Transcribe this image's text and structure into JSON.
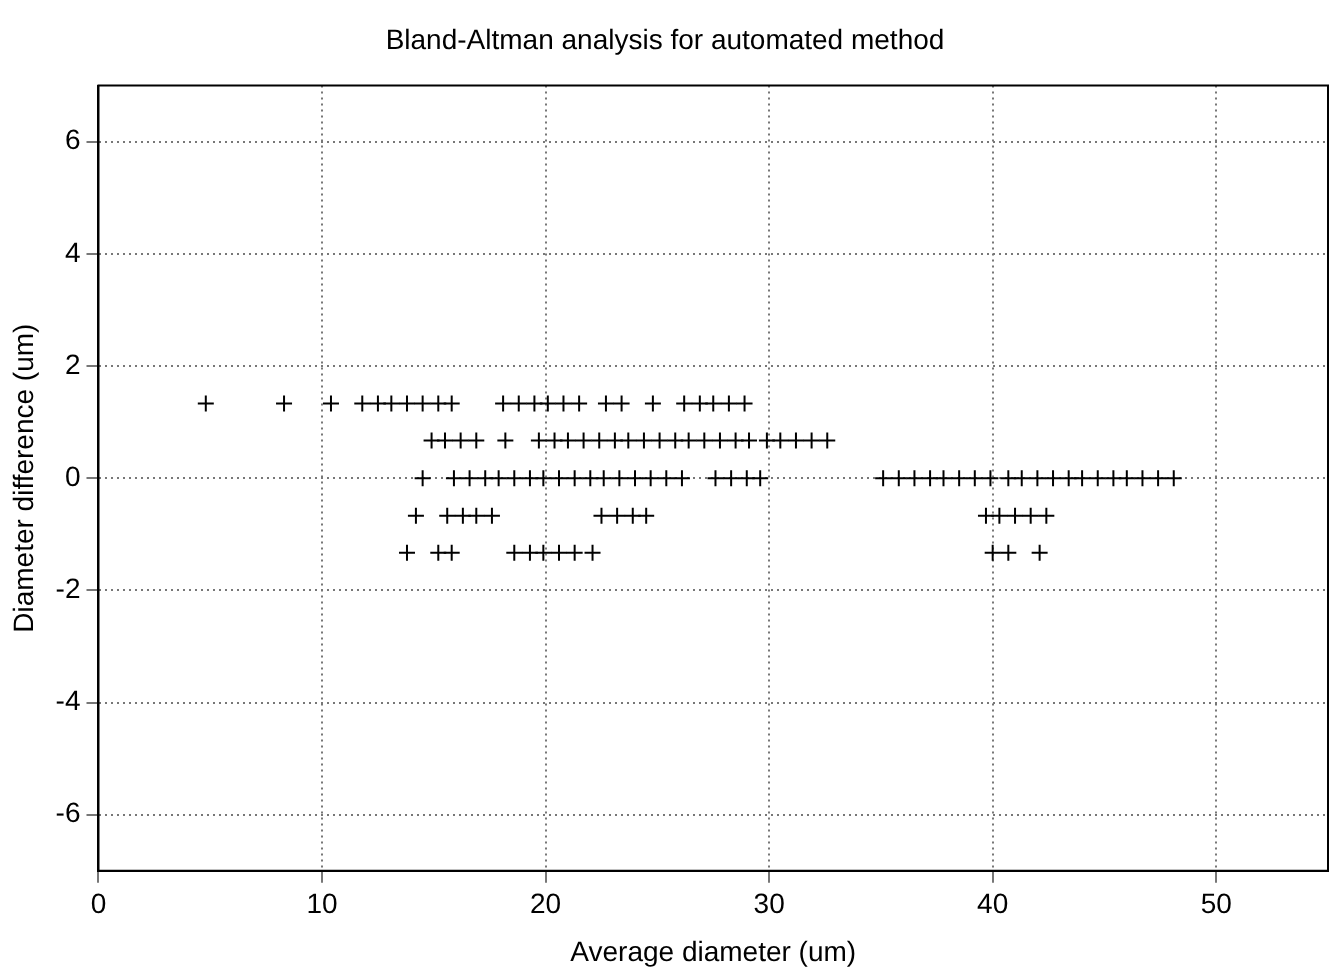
{
  "chart_data": {
    "type": "scatter",
    "title": "Bland-Altman analysis for automated method",
    "xlabel": "Average diameter (um)",
    "ylabel": "Diameter difference (um)",
    "xlim": [
      0,
      55
    ],
    "xticks": [
      0,
      10,
      20,
      30,
      40,
      50
    ],
    "ylim": [
      -7,
      7
    ],
    "yticks": [
      -6,
      -4,
      -2,
      0,
      2,
      4,
      6
    ],
    "grid": true,
    "marker": "cross",
    "legend": false,
    "series": [
      {
        "color": "#000000",
        "x": [
          4.8,
          8.3,
          10.4,
          11.8,
          12.5,
          13.1,
          13.8,
          14.5,
          15.2,
          15.8,
          18.1,
          18.8,
          19.5,
          20.1,
          20.8,
          21.5,
          22.7,
          23.4,
          24.8,
          26.2,
          26.9,
          27.5,
          28.2,
          28.9,
          14.9,
          15.5,
          16.2,
          16.9,
          18.2,
          19.7,
          20.4,
          21.0,
          21.7,
          22.4,
          23.1,
          23.7,
          24.4,
          25.1,
          25.8,
          26.4,
          27.1,
          27.8,
          28.5,
          29.1,
          29.9,
          30.5,
          31.2,
          31.9,
          32.6,
          14.5,
          15.9,
          16.6,
          17.3,
          17.9,
          18.6,
          19.3,
          19.9,
          20.6,
          21.3,
          22.0,
          22.6,
          23.3,
          24.0,
          24.7,
          25.4,
          26.1,
          27.6,
          28.3,
          29.0,
          29.6,
          35.1,
          35.8,
          36.5,
          37.2,
          37.8,
          38.5,
          39.2,
          39.9,
          40.7,
          41.3,
          42.0,
          42.7,
          43.4,
          44.0,
          44.7,
          45.4,
          46.0,
          46.7,
          47.4,
          48.1,
          14.2,
          15.6,
          16.3,
          16.9,
          17.6,
          22.5,
          23.2,
          23.9,
          24.5,
          39.7,
          40.3,
          41.0,
          41.7,
          42.4,
          13.8,
          15.2,
          15.8,
          18.6,
          19.3,
          19.9,
          20.6,
          21.3,
          22.1,
          40.0,
          40.7,
          42.1
        ],
        "values": [
          1.33,
          1.33,
          1.33,
          1.33,
          1.33,
          1.33,
          1.33,
          1.33,
          1.33,
          1.33,
          1.33,
          1.33,
          1.33,
          1.33,
          1.33,
          1.33,
          1.33,
          1.33,
          1.33,
          1.33,
          1.33,
          1.33,
          1.33,
          1.33,
          0.67,
          0.67,
          0.67,
          0.67,
          0.67,
          0.67,
          0.67,
          0.67,
          0.67,
          0.67,
          0.67,
          0.67,
          0.67,
          0.67,
          0.67,
          0.67,
          0.67,
          0.67,
          0.67,
          0.67,
          0.67,
          0.67,
          0.67,
          0.67,
          0.67,
          0,
          0,
          0,
          0,
          0,
          0,
          0,
          0,
          0,
          0,
          0,
          0,
          0,
          0,
          0,
          0,
          0,
          0,
          0,
          0,
          0,
          0,
          0,
          0,
          0,
          0,
          0,
          0,
          0,
          0,
          0,
          0,
          0,
          0,
          0,
          0,
          0,
          0,
          0,
          0,
          0,
          -0.67,
          -0.67,
          -0.67,
          -0.67,
          -0.67,
          -0.67,
          -0.67,
          -0.67,
          -0.67,
          -0.67,
          -0.67,
          -0.67,
          -0.67,
          -0.67,
          -1.33,
          -1.33,
          -1.33,
          -1.33,
          -1.33,
          -1.33,
          -1.33,
          -1.33,
          -1.33,
          -1.33,
          -1.33,
          -1.33
        ]
      }
    ]
  }
}
